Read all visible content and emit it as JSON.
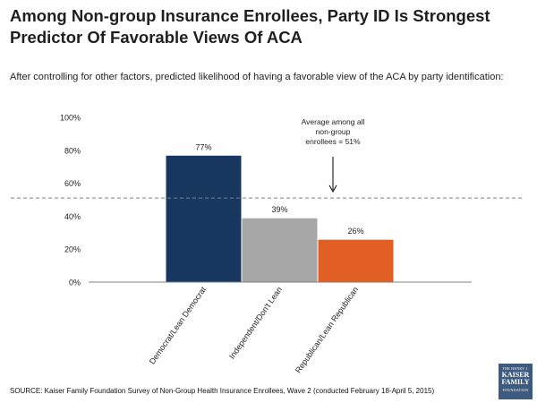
{
  "header": {
    "title_line1": "Among Non-group Insurance Enrollees, Party ID Is Strongest",
    "title_line2": "Predictor Of Favorable Views Of ACA",
    "subtitle": "After controlling for other factors, predicted likelihood of having a favorable view of the ACA by party identification:"
  },
  "footer": {
    "source": "SOURCE: Kaiser Family Foundation Survey of Non-Group Health Insurance Enrollees, Wave 2 (conducted February 18-April 5, 2015)"
  },
  "logo": {
    "line1": "THE HENRY J.",
    "line2": "KAISER",
    "line3": "FAMILY",
    "line4": "FOUNDATION"
  },
  "chart_data": {
    "type": "bar",
    "title": "",
    "xlabel": "",
    "ylabel": "",
    "categories": [
      "Democrat/Lean Democrat",
      "Independent/Don't Lean",
      "Republican/Lean Republican"
    ],
    "values": [
      77,
      39,
      26
    ],
    "value_labels": [
      "77%",
      "39%",
      "26%"
    ],
    "colors": [
      "#17375e",
      "#a6a6a6",
      "#e15e24"
    ],
    "ylim": [
      0,
      100
    ],
    "yticks": [
      0,
      20,
      40,
      60,
      80,
      100
    ],
    "ytick_labels": [
      "0%",
      "20%",
      "40%",
      "60%",
      "80%",
      "100%"
    ],
    "reference_line": {
      "value": 51,
      "style": "dashed"
    },
    "annotation": {
      "lines": [
        "Average among all",
        "non-group",
        "enrollees = 51%"
      ]
    }
  }
}
